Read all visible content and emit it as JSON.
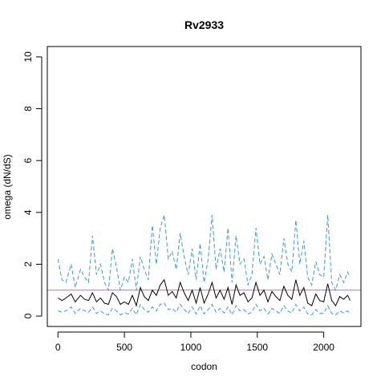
{
  "chart_data": {
    "type": "line",
    "title": "Rv2933",
    "xlabel": "codon",
    "ylabel": "omega (dN/dS)",
    "xlim": [
      -80,
      2280
    ],
    "ylim": [
      -0.4,
      10.4
    ],
    "x_ticks": [
      0,
      500,
      1000,
      1500,
      2000
    ],
    "y_ticks": [
      0,
      2,
      4,
      6,
      8,
      10
    ],
    "reference_line": {
      "y": 1.0,
      "color": "#cc66cc"
    },
    "grid": false,
    "legend": "none",
    "series": [
      {
        "role": "upper",
        "color": "#3399dd",
        "dash": true,
        "x": [
          0,
          30,
          60,
          100,
          130,
          170,
          200,
          230,
          260,
          290,
          320,
          350,
          380,
          410,
          440,
          470,
          500,
          530,
          560,
          590,
          620,
          650,
          680,
          710,
          740,
          770,
          800,
          830,
          860,
          890,
          920,
          950,
          980,
          1010,
          1040,
          1070,
          1100,
          1130,
          1160,
          1190,
          1220,
          1250,
          1280,
          1310,
          1340,
          1370,
          1400,
          1430,
          1460,
          1490,
          1520,
          1550,
          1580,
          1610,
          1640,
          1670,
          1700,
          1730,
          1760,
          1790,
          1820,
          1850,
          1880,
          1910,
          1940,
          1970,
          2000,
          2030,
          2060,
          2090,
          2120,
          2150,
          2180,
          2200
        ],
        "y": [
          2.2,
          1.4,
          1.3,
          2.0,
          1.1,
          1.8,
          1.5,
          1.3,
          3.1,
          1.6,
          2.0,
          1.3,
          1.0,
          2.6,
          1.9,
          1.0,
          1.5,
          1.3,
          2.2,
          1.0,
          2.3,
          1.8,
          1.4,
          3.5,
          2.0,
          3.4,
          3.9,
          2.2,
          2.5,
          1.8,
          3.2,
          2.3,
          1.6,
          2.6,
          1.4,
          2.8,
          1.3,
          2.2,
          3.9,
          1.8,
          2.6,
          1.7,
          3.4,
          1.3,
          3.1,
          2.0,
          2.2,
          1.2,
          1.6,
          3.4,
          2.0,
          2.3,
          1.4,
          2.4,
          2.0,
          1.6,
          3.0,
          2.0,
          1.7,
          3.7,
          2.0,
          2.9,
          1.5,
          1.2,
          2.1,
          1.6,
          1.5,
          3.9,
          1.3,
          1.0,
          1.6,
          1.3,
          1.7,
          1.5
        ]
      },
      {
        "role": "estimate",
        "color": "#000000",
        "dash": false,
        "x": [
          0,
          30,
          60,
          100,
          130,
          170,
          200,
          230,
          260,
          290,
          320,
          350,
          380,
          410,
          440,
          470,
          500,
          530,
          560,
          590,
          620,
          650,
          680,
          710,
          740,
          770,
          800,
          830,
          860,
          890,
          920,
          950,
          980,
          1010,
          1040,
          1070,
          1100,
          1130,
          1160,
          1190,
          1220,
          1250,
          1280,
          1310,
          1340,
          1370,
          1400,
          1430,
          1460,
          1490,
          1520,
          1550,
          1580,
          1610,
          1640,
          1670,
          1700,
          1730,
          1760,
          1790,
          1820,
          1850,
          1880,
          1910,
          1940,
          1970,
          2000,
          2030,
          2060,
          2090,
          2120,
          2150,
          2180,
          2200
        ],
        "y": [
          0.7,
          0.6,
          0.7,
          0.85,
          0.55,
          0.8,
          0.65,
          0.6,
          0.9,
          0.55,
          0.7,
          0.5,
          0.45,
          0.9,
          0.75,
          0.45,
          0.55,
          0.45,
          0.8,
          0.4,
          1.1,
          0.75,
          0.6,
          1.0,
          0.8,
          1.2,
          1.4,
          0.8,
          0.95,
          0.7,
          1.3,
          0.9,
          0.6,
          1.0,
          0.5,
          1.1,
          0.5,
          0.85,
          1.3,
          0.7,
          1.0,
          0.65,
          1.1,
          0.45,
          1.2,
          0.8,
          0.9,
          0.55,
          0.7,
          1.3,
          0.8,
          1.0,
          0.55,
          0.95,
          0.75,
          0.6,
          1.15,
          0.8,
          0.65,
          1.4,
          0.8,
          1.1,
          0.5,
          0.4,
          0.85,
          0.6,
          0.55,
          1.25,
          0.6,
          0.4,
          0.75,
          0.65,
          0.8,
          0.6
        ]
      },
      {
        "role": "lower",
        "color": "#3399dd",
        "dash": true,
        "x": [
          0,
          30,
          60,
          100,
          130,
          170,
          200,
          230,
          260,
          290,
          320,
          350,
          380,
          410,
          440,
          470,
          500,
          530,
          560,
          590,
          620,
          650,
          680,
          710,
          740,
          770,
          800,
          830,
          860,
          890,
          920,
          950,
          980,
          1010,
          1040,
          1070,
          1100,
          1130,
          1160,
          1190,
          1220,
          1250,
          1280,
          1310,
          1340,
          1370,
          1400,
          1430,
          1460,
          1490,
          1520,
          1550,
          1580,
          1610,
          1640,
          1670,
          1700,
          1730,
          1760,
          1790,
          1820,
          1850,
          1880,
          1910,
          1940,
          1970,
          2000,
          2030,
          2060,
          2090,
          2120,
          2150,
          2180,
          2200
        ],
        "y": [
          0.2,
          0.15,
          0.2,
          0.35,
          0.1,
          0.3,
          0.2,
          0.15,
          0.35,
          0.1,
          0.2,
          0.08,
          0.05,
          0.3,
          0.2,
          0.05,
          0.12,
          0.08,
          0.3,
          0.05,
          0.45,
          0.25,
          0.15,
          0.35,
          0.2,
          0.45,
          0.5,
          0.25,
          0.3,
          0.15,
          0.45,
          0.25,
          0.1,
          0.35,
          0.08,
          0.4,
          0.08,
          0.25,
          0.45,
          0.15,
          0.3,
          0.12,
          0.35,
          0.05,
          0.4,
          0.2,
          0.25,
          0.08,
          0.15,
          0.45,
          0.2,
          0.3,
          0.08,
          0.3,
          0.2,
          0.1,
          0.4,
          0.2,
          0.12,
          0.45,
          0.2,
          0.35,
          0.08,
          0.05,
          0.25,
          0.1,
          0.1,
          0.4,
          0.1,
          0.05,
          0.2,
          0.12,
          0.2,
          0.1
        ]
      }
    ]
  }
}
